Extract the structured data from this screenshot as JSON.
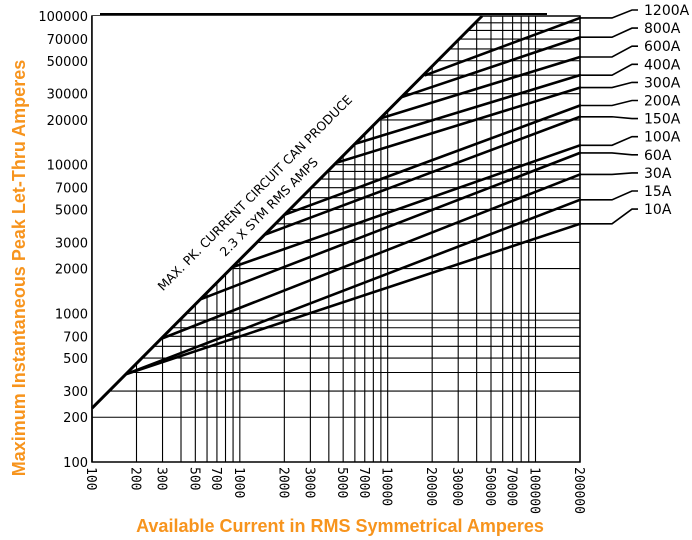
{
  "chart_data": {
    "type": "line",
    "x_axis": {
      "title": "Available Current in RMS Symmetrical Amperes",
      "scale": "log",
      "range": [
        100,
        200000
      ],
      "tick_labels": [
        "100",
        "200",
        "300",
        "500",
        "700",
        "1000",
        "2000",
        "3000",
        "5000",
        "7000",
        "10000",
        "20000",
        "30000",
        "50000",
        "70000",
        "100000",
        "200000"
      ]
    },
    "y_axis": {
      "title": "Maximum Instantaneous Peak Let-Thru Amperes",
      "scale": "log",
      "range": [
        100,
        100000
      ],
      "tick_labels": [
        "100000",
        "70000",
        "50000",
        "30000",
        "20000",
        "10000",
        "7000",
        "5000",
        "3000",
        "2000",
        "1000",
        "700",
        "500",
        "300",
        "200",
        "100"
      ]
    },
    "title_color": "#f7941d",
    "grid": true,
    "legend": "curve labels at right edge",
    "annotation": {
      "line1": "MAX. PK. CURRENT CIRCUIT CAN PRODUCE",
      "line2": "2.3 X SYM RMS AMPS"
    },
    "boundary": {
      "name": "MAX. PK. CURRENT CIRCUIT CAN PRODUCE",
      "x": [
        100,
        43500
      ],
      "y": [
        230,
        100000
      ]
    },
    "series": [
      {
        "name": "1200A",
        "x": [
          18000,
          200000
        ],
        "y": [
          40000,
          97000
        ]
      },
      {
        "name": "800A",
        "x": [
          12500,
          200000
        ],
        "y": [
          28500,
          72000
        ]
      },
      {
        "name": "600A",
        "x": [
          9000,
          200000
        ],
        "y": [
          20500,
          53000
        ]
      },
      {
        "name": "400A",
        "x": [
          6000,
          200000
        ],
        "y": [
          13800,
          40000
        ]
      },
      {
        "name": "300A",
        "x": [
          4500,
          200000
        ],
        "y": [
          10300,
          33000
        ]
      },
      {
        "name": "200A",
        "x": [
          2000,
          200000
        ],
        "y": [
          4600,
          25000
        ]
      },
      {
        "name": "150A",
        "x": [
          1500,
          200000
        ],
        "y": [
          3400,
          21000
        ]
      },
      {
        "name": "100A",
        "x": [
          900,
          200000
        ],
        "y": [
          2050,
          13500
        ]
      },
      {
        "name": "60A",
        "x": [
          550,
          200000
        ],
        "y": [
          1250,
          12000
        ]
      },
      {
        "name": "30A",
        "x": [
          300,
          200000
        ],
        "y": [
          680,
          8600
        ]
      },
      {
        "name": "15A",
        "x": [
          170,
          200000
        ],
        "y": [
          390,
          5800
        ]
      },
      {
        "name": "10A",
        "x": [
          170,
          200000
        ],
        "y": [
          390,
          4000
        ]
      }
    ]
  }
}
